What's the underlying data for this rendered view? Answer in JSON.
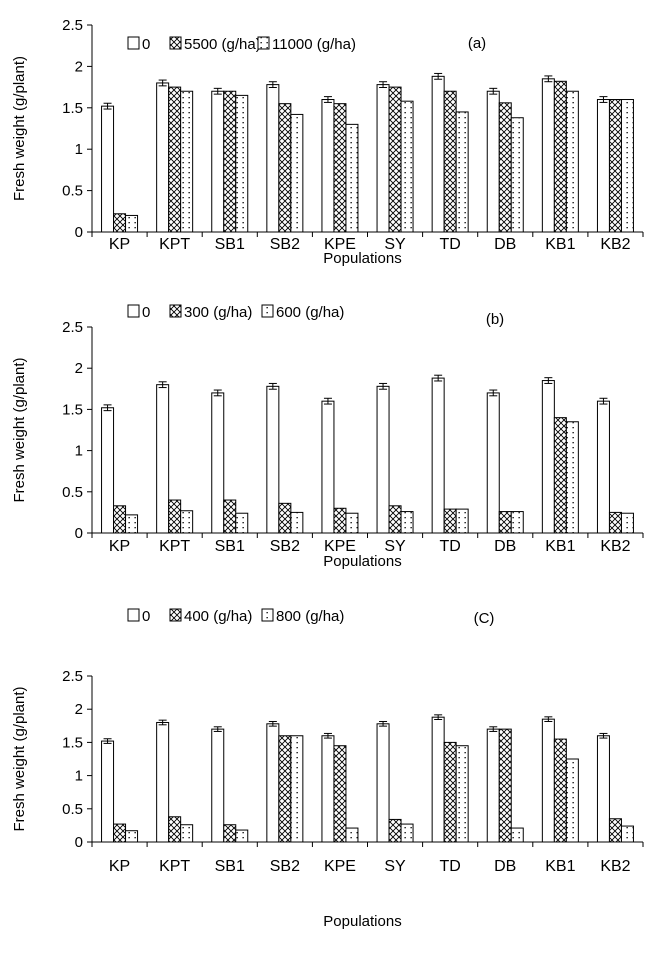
{
  "chart_data": [
    {
      "type": "bar",
      "panel_label": "(a)",
      "xlabel": "Populations",
      "ylabel": "Fresh weight (g/plant)",
      "ylim": [
        0,
        2.5
      ],
      "yticks": [
        "0",
        "0.5",
        "1",
        "1.5",
        "2",
        "2.5"
      ],
      "grid": false,
      "legend_position": "top",
      "categories": [
        "KP",
        "KPT",
        "SB1",
        "SB2",
        "KPE",
        "SY",
        "TD",
        "DB",
        "KB1",
        "KB2"
      ],
      "series": [
        {
          "name": "0",
          "pattern": "plain",
          "error_bars": true,
          "values": [
            1.52,
            1.8,
            1.7,
            1.78,
            1.6,
            1.78,
            1.88,
            1.7,
            1.85,
            1.6
          ]
        },
        {
          "name": "5500 (g/ha)",
          "pattern": "crosshatch",
          "error_bars": false,
          "values": [
            0.22,
            1.75,
            1.7,
            1.55,
            1.55,
            1.75,
            1.7,
            1.56,
            1.82,
            1.6
          ]
        },
        {
          "name": "11000 (g/ha)",
          "pattern": "dots",
          "error_bars": false,
          "values": [
            0.2,
            1.7,
            1.65,
            1.42,
            1.3,
            1.58,
            1.45,
            1.38,
            1.7,
            1.6
          ]
        }
      ]
    },
    {
      "type": "bar",
      "panel_label": "(b)",
      "xlabel": "Populations",
      "ylabel": "Fresh weight (g/plant)",
      "ylim": [
        0,
        2.5
      ],
      "yticks": [
        "0",
        "0.5",
        "1",
        "1.5",
        "2",
        "2.5"
      ],
      "grid": false,
      "legend_position": "top",
      "categories": [
        "KP",
        "KPT",
        "SB1",
        "SB2",
        "KPE",
        "SY",
        "TD",
        "DB",
        "KB1",
        "KB2"
      ],
      "series": [
        {
          "name": "0",
          "pattern": "plain",
          "error_bars": true,
          "values": [
            1.52,
            1.8,
            1.7,
            1.78,
            1.6,
            1.78,
            1.88,
            1.7,
            1.85,
            1.6
          ]
        },
        {
          "name": "300 (g/ha)",
          "pattern": "crosshatch",
          "error_bars": false,
          "values": [
            0.33,
            0.4,
            0.4,
            0.36,
            0.3,
            0.33,
            0.29,
            0.26,
            1.4,
            0.25
          ]
        },
        {
          "name": "600 (g/ha)",
          "pattern": "dots",
          "error_bars": false,
          "values": [
            0.22,
            0.27,
            0.24,
            0.25,
            0.24,
            0.26,
            0.29,
            0.26,
            1.35,
            0.24
          ]
        }
      ]
    },
    {
      "type": "bar",
      "panel_label": "(C)",
      "xlabel": "Populations",
      "ylabel": "Fresh weight (g/plant)",
      "ylim": [
        0,
        2.5
      ],
      "yticks": [
        "0",
        "0.5",
        "1",
        "1.5",
        "2",
        "2.5"
      ],
      "grid": false,
      "legend_position": "top",
      "categories": [
        "KP",
        "KPT",
        "SB1",
        "SB2",
        "KPE",
        "SY",
        "TD",
        "DB",
        "KB1",
        "KB2"
      ],
      "series": [
        {
          "name": "0",
          "pattern": "plain",
          "error_bars": true,
          "values": [
            1.52,
            1.8,
            1.7,
            1.78,
            1.6,
            1.78,
            1.88,
            1.7,
            1.85,
            1.6
          ]
        },
        {
          "name": "400 (g/ha)",
          "pattern": "crosshatch",
          "error_bars": false,
          "values": [
            0.27,
            0.38,
            0.26,
            1.6,
            1.45,
            0.34,
            1.5,
            1.7,
            1.55,
            0.35
          ]
        },
        {
          "name": "800 (g/ha)",
          "pattern": "dots",
          "error_bars": false,
          "values": [
            0.17,
            0.26,
            0.18,
            1.6,
            0.21,
            0.27,
            1.45,
            0.21,
            1.25,
            0.24
          ]
        }
      ]
    }
  ]
}
